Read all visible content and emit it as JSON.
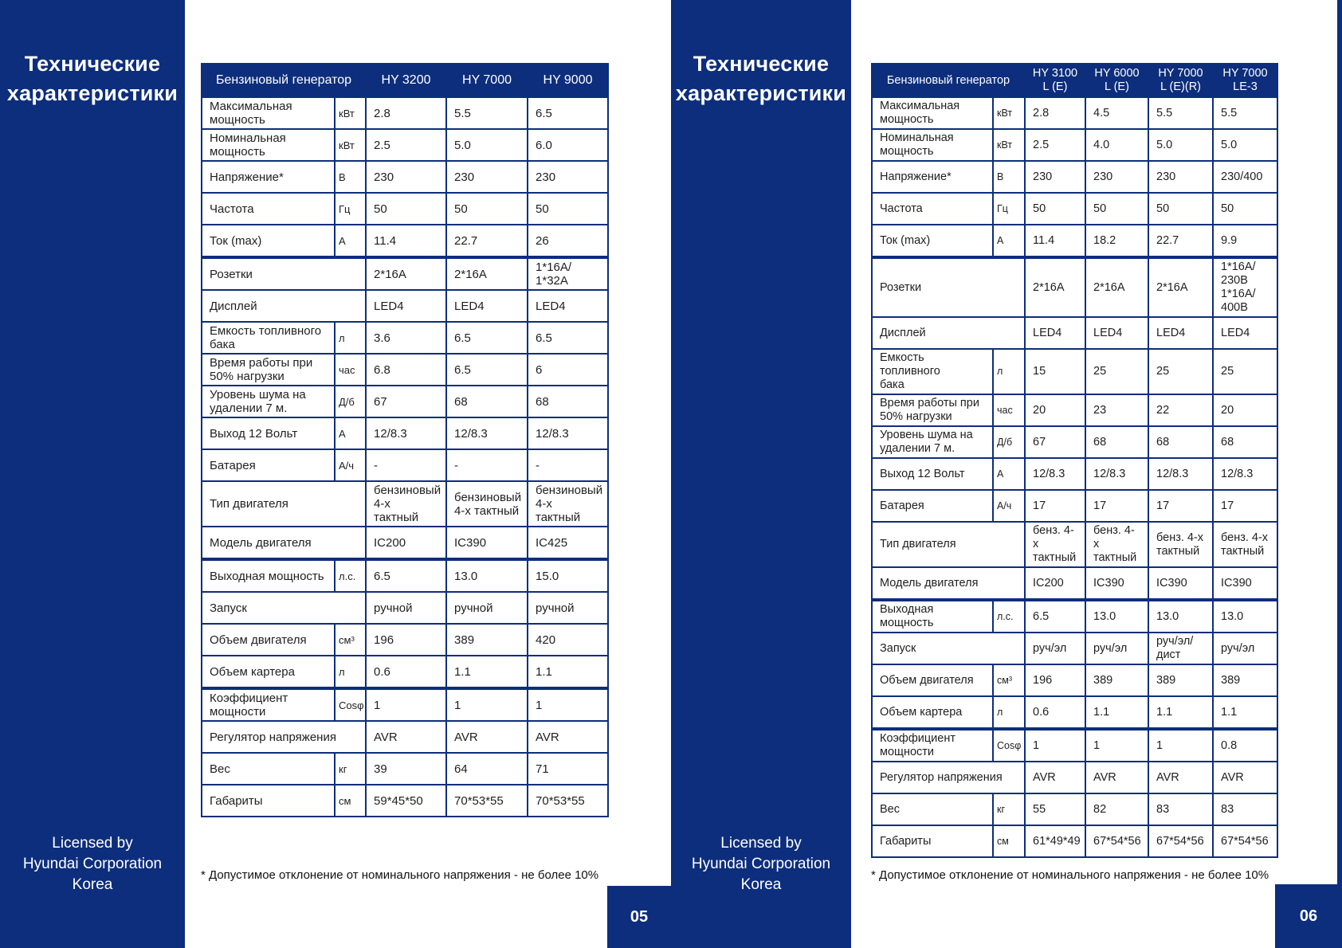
{
  "theme": {
    "navy": "#0d2e7c",
    "text_color": "#1f1f1f"
  },
  "pages": [
    {
      "page_number": "05",
      "sidebar_title": "Технические\nхарактеристики",
      "license_text": "Licensed by\nHyundai Corporation\nKorea",
      "footnote": "* Допустимое отклонение от номинального напряжения - не более 10%",
      "table": {
        "header_label": "Бензиновый генератор",
        "models": [
          "HY 3200",
          "HY 7000",
          "HY 9000"
        ],
        "rows": [
          {
            "label": "Максимальная\nмощность",
            "unit": "кВт",
            "values": [
              "2.8",
              "5.5",
              "6.5"
            ]
          },
          {
            "label": "Номинальная\nмощность",
            "unit": "кВт",
            "values": [
              "2.5",
              "5.0",
              "6.0"
            ]
          },
          {
            "label": "Напряжение*",
            "unit": "В",
            "values": [
              "230",
              "230",
              "230"
            ]
          },
          {
            "label": "Частота",
            "unit": "Гц",
            "values": [
              "50",
              "50",
              "50"
            ]
          },
          {
            "label": "Ток (max)",
            "unit": "А",
            "values": [
              "11.4",
              "22.7",
              "26"
            ]
          },
          {
            "label": "Розетки",
            "unit": null,
            "section": true,
            "values": [
              "2*16А",
              "2*16А",
              "1*16А/\n1*32А"
            ]
          },
          {
            "label": "Дисплей",
            "unit": null,
            "values": [
              "LED4",
              "LED4",
              "LED4"
            ]
          },
          {
            "label": "Емкость топливного\nбака",
            "unit": "л",
            "values": [
              "3.6",
              "6.5",
              "6.5"
            ]
          },
          {
            "label": "Время работы при\n50% нагрузки",
            "unit": "час",
            "values": [
              "6.8",
              "6.5",
              "6"
            ]
          },
          {
            "label": "Уровень шума на\nудалении 7 м.",
            "unit": "Д/б",
            "values": [
              "67",
              "68",
              "68"
            ]
          },
          {
            "label": "Выход 12 Вольт",
            "unit": "А",
            "values": [
              "12/8.3",
              "12/8.3",
              "12/8.3"
            ]
          },
          {
            "label": "Батарея",
            "unit": "А/ч",
            "values": [
              "-",
              "-",
              "-"
            ]
          },
          {
            "label": "Тип двигателя",
            "unit": null,
            "values": [
              "бензиновый\n4-х тактный",
              "бензиновый\n4-х тактный",
              "бензиновый\n4-х тактный"
            ]
          },
          {
            "label": "Модель двигателя",
            "unit": null,
            "values": [
              "IC200",
              "IC390",
              "IC425"
            ]
          },
          {
            "label": "Выходная мощность",
            "unit": "л.с.",
            "section": true,
            "values": [
              "6.5",
              "13.0",
              "15.0"
            ]
          },
          {
            "label": "Запуск",
            "unit": null,
            "values": [
              "ручной",
              "ручной",
              "ручной"
            ]
          },
          {
            "label": "Объем двигателя",
            "unit": "см³",
            "values": [
              "196",
              "389",
              "420"
            ]
          },
          {
            "label": "Объем картера",
            "unit": "л",
            "values": [
              "0.6",
              "1.1",
              "1.1"
            ]
          },
          {
            "label": "Коэффициент\nмощности",
            "unit": "Cosφ",
            "section": true,
            "values": [
              "1",
              "1",
              "1"
            ]
          },
          {
            "label": "Регулятор напряжения",
            "unit": null,
            "values": [
              "AVR",
              "AVR",
              "AVR"
            ]
          },
          {
            "label": "Вес",
            "unit": "кг",
            "values": [
              "39",
              "64",
              "71"
            ]
          },
          {
            "label": "Габариты",
            "unit": "см",
            "values": [
              "59*45*50",
              "70*53*55",
              "70*53*55"
            ]
          }
        ]
      }
    },
    {
      "page_number": "06",
      "sidebar_title": "Технические\nхарактеристики",
      "license_text": "Licensed by\nHyundai Corporation\nKorea",
      "footnote": "* Допустимое отклонение от номинального напряжения - не более 10%",
      "table": {
        "header_label": "Бензиновый генератор",
        "models": [
          "HY 3100\nL (E)",
          "HY 6000\nL (E)",
          "HY 7000\nL (E)(R)",
          "HY 7000\nLE-3"
        ],
        "rows": [
          {
            "label": "Максимальная\nмощность",
            "unit": "кВт",
            "values": [
              "2.8",
              "4.5",
              "5.5",
              "5.5"
            ]
          },
          {
            "label": "Номинальная\nмощность",
            "unit": "кВт",
            "values": [
              "2.5",
              "4.0",
              "5.0",
              "5.0"
            ]
          },
          {
            "label": "Напряжение*",
            "unit": "В",
            "values": [
              "230",
              "230",
              "230",
              "230/400"
            ]
          },
          {
            "label": "Частота",
            "unit": "Гц",
            "values": [
              "50",
              "50",
              "50",
              "50"
            ]
          },
          {
            "label": "Ток (max)",
            "unit": "А",
            "values": [
              "11.4",
              "18.2",
              "22.7",
              "9.9"
            ]
          },
          {
            "label": "Розетки",
            "unit": null,
            "section": true,
            "values": [
              "2*16А",
              "2*16А",
              "2*16А",
              "1*16А/\n230В\n1*16А/\n400В"
            ]
          },
          {
            "label": "Дисплей",
            "unit": null,
            "values": [
              "LED4",
              "LED4",
              "LED4",
              "LED4"
            ]
          },
          {
            "label": "Емкость топливного\nбака",
            "unit": "л",
            "values": [
              "15",
              "25",
              "25",
              "25"
            ]
          },
          {
            "label": "Время работы при\n50% нагрузки",
            "unit": "час",
            "values": [
              "20",
              "23",
              "22",
              "20"
            ]
          },
          {
            "label": "Уровень шума на\nудалении 7 м.",
            "unit": "Д/б",
            "values": [
              "67",
              "68",
              "68",
              "68"
            ]
          },
          {
            "label": "Выход 12 Вольт",
            "unit": "А",
            "values": [
              "12/8.3",
              "12/8.3",
              "12/8.3",
              "12/8.3"
            ]
          },
          {
            "label": "Батарея",
            "unit": "А/ч",
            "values": [
              "17",
              "17",
              "17",
              "17"
            ]
          },
          {
            "label": "Тип двигателя",
            "unit": null,
            "values": [
              "бенз. 4-х\nтактный",
              "бенз. 4-х\nтактный",
              "бенз. 4-х\nтактный",
              "бенз. 4-х\nтактный"
            ]
          },
          {
            "label": "Модель двигателя",
            "unit": null,
            "values": [
              "IC200",
              "IC390",
              "IC390",
              "IC390"
            ]
          },
          {
            "label": "Выходная мощность",
            "unit": "л.с.",
            "section": true,
            "values": [
              "6.5",
              "13.0",
              "13.0",
              "13.0"
            ]
          },
          {
            "label": "Запуск",
            "unit": null,
            "values": [
              "руч/эл",
              "руч/эл",
              "руч/эл/\nдист",
              "руч/эл"
            ]
          },
          {
            "label": "Объем двигателя",
            "unit": "см³",
            "values": [
              "196",
              "389",
              "389",
              "389"
            ]
          },
          {
            "label": "Объем картера",
            "unit": "л",
            "values": [
              "0.6",
              "1.1",
              "1.1",
              "1.1"
            ]
          },
          {
            "label": "Коэффициент\nмощности",
            "unit": "Cosφ",
            "section": true,
            "values": [
              "1",
              "1",
              "1",
              "0.8"
            ]
          },
          {
            "label": "Регулятор напряжения",
            "unit": null,
            "values": [
              "AVR",
              "AVR",
              "AVR",
              "AVR"
            ]
          },
          {
            "label": "Вес",
            "unit": "кг",
            "values": [
              "55",
              "82",
              "83",
              "83"
            ]
          },
          {
            "label": "Габариты",
            "unit": "см",
            "values": [
              "61*49*49",
              "67*54*56",
              "67*54*56",
              "67*54*56"
            ]
          }
        ]
      }
    }
  ]
}
